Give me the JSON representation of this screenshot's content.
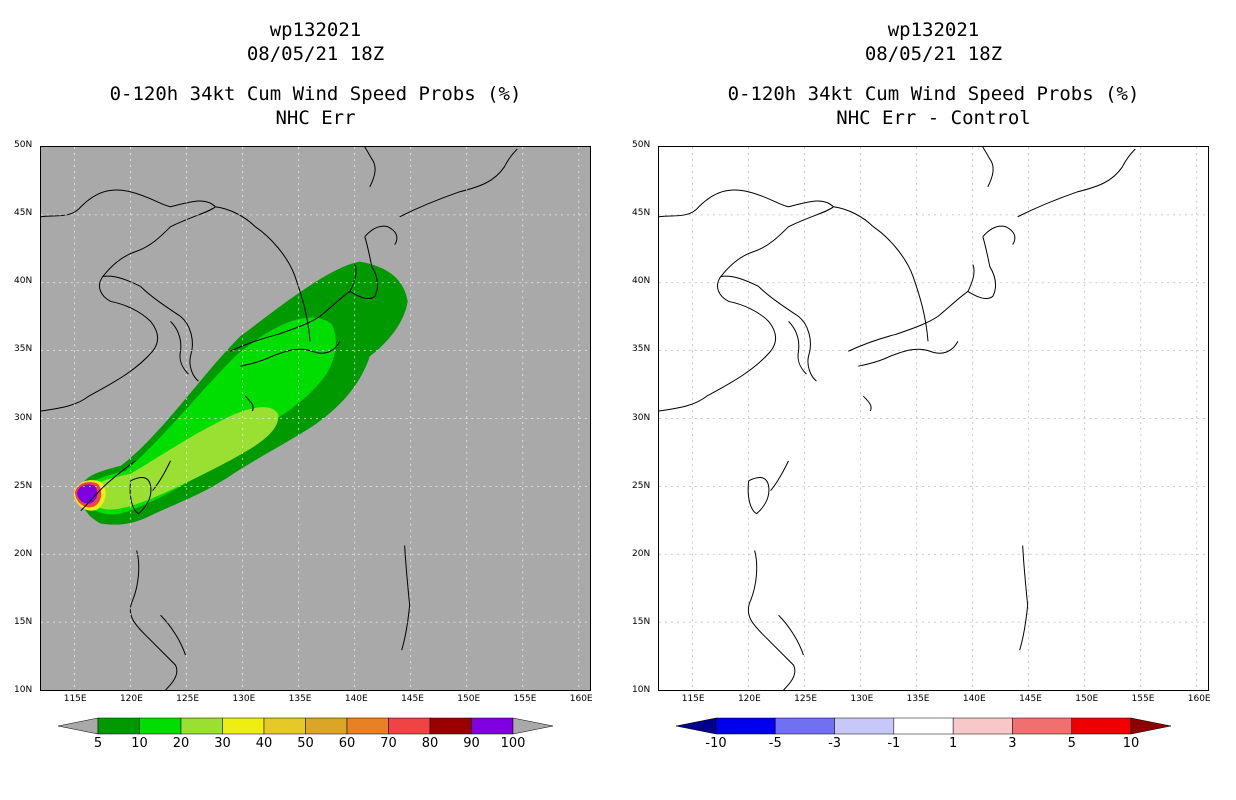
{
  "left_panel": {
    "title": {
      "line1": "wp132021",
      "line2": "08/05/21 18Z",
      "line3": "0-120h 34kt Cum Wind Speed Probs (%)",
      "line4": "NHC Err"
    },
    "background_color": "#a9a9a9",
    "colorbar": {
      "colors": [
        "#009900",
        "#00dd00",
        "#99e033",
        "#eeee11",
        "#e6c829",
        "#dba628",
        "#e88024",
        "#ee4444",
        "#990000",
        "#7f00e0"
      ],
      "end_color": "#a9a9a9",
      "labels": [
        "5",
        "10",
        "20",
        "30",
        "40",
        "50",
        "60",
        "70",
        "80",
        "90",
        "100"
      ]
    }
  },
  "right_panel": {
    "title": {
      "line1": "wp132021",
      "line2": "08/05/21 18Z",
      "line3": "0-120h 34kt Cum Wind Speed Probs (%)",
      "line4": "NHC Err - Control"
    },
    "background_color": "#ffffff",
    "colorbar": {
      "colors": [
        "#0000ee",
        "#7070f0",
        "#c8c8f8",
        "#ffffff",
        "#f8c8c8",
        "#f07070",
        "#ee0000"
      ],
      "end_left": "#00008b",
      "end_right": "#8b0000",
      "labels": [
        "-10",
        "-5",
        "-3",
        "-1",
        "1",
        "3",
        "5",
        "10"
      ]
    }
  },
  "axes": {
    "lat_labels": [
      "50N",
      "45N",
      "40N",
      "35N",
      "30N",
      "25N",
      "20N",
      "15N",
      "10N"
    ],
    "lon_labels": [
      "115E",
      "120E",
      "125E",
      "130E",
      "135E",
      "140E",
      "145E",
      "150E",
      "155E",
      "160E"
    ]
  }
}
